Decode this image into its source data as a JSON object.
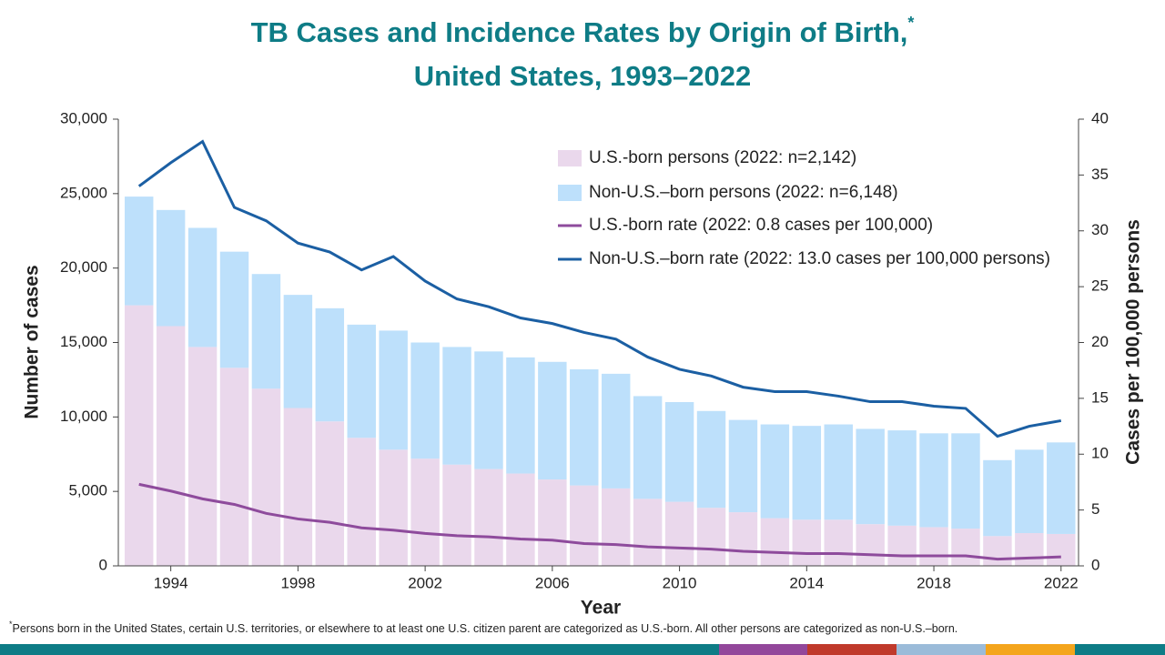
{
  "chart_data": {
    "type": "bar-line",
    "title": [
      "TB Cases and Incidence Rates by Origin of Birth,",
      "United States, 1993–2022"
    ],
    "title_mark": "*",
    "x_label": "Year",
    "y_label": "Number of cases",
    "y2_label": "Cases per 100,000 persons",
    "footnote_mark": "*",
    "footnote": "Persons born in the United States, certain U.S. territories, or elsewhere to at least one U.S. citizen parent are categorized as U.S.-born. All other persons are categorized as non-U.S.–born.",
    "x": [
      1993,
      1994,
      1995,
      1996,
      1997,
      1998,
      1999,
      2000,
      2001,
      2002,
      2003,
      2004,
      2005,
      2006,
      2007,
      2008,
      2009,
      2010,
      2011,
      2012,
      2013,
      2014,
      2015,
      2016,
      2017,
      2018,
      2019,
      2020,
      2021,
      2022
    ],
    "xlim": [
      1992.35,
      2022.55
    ],
    "xticks": [
      1994,
      1998,
      2002,
      2006,
      2010,
      2014,
      2018,
      2022
    ],
    "ylim": [
      0,
      30000
    ],
    "yticks": [
      0,
      {
        "value": 5000,
        "label": "5,000"
      },
      {
        "value": 10000,
        "label": "10,000"
      },
      {
        "value": 15000,
        "label": "15,000"
      },
      {
        "value": 20000,
        "label": "20,000"
      },
      {
        "value": 25000,
        "label": "25,000"
      },
      {
        "value": 30000,
        "label": "30,000"
      }
    ],
    "y2lim": [
      0,
      40
    ],
    "y2ticks": [
      0,
      5,
      10,
      15,
      20,
      25,
      30,
      35,
      40
    ],
    "stacked": true,
    "series": [
      {
        "name": "U.S.-born persons (2022: n=2,142)",
        "type": "bar",
        "color": "#ead8ec",
        "values": [
          17500,
          16100,
          14700,
          13300,
          11900,
          10600,
          9700,
          8600,
          7800,
          7200,
          6800,
          6500,
          6200,
          5800,
          5400,
          5200,
          4500,
          4300,
          3900,
          3600,
          3200,
          3100,
          3100,
          2800,
          2700,
          2600,
          2500,
          2000,
          2200,
          2142
        ]
      },
      {
        "name": "Non-U.S.–born persons (2022: n=6,148)",
        "type": "bar",
        "color": "#bde0fb",
        "values": [
          7300,
          7800,
          8000,
          7800,
          7700,
          7600,
          7600,
          7600,
          8000,
          7800,
          7900,
          7900,
          7800,
          7900,
          7800,
          7700,
          6900,
          6700,
          6500,
          6200,
          6300,
          6300,
          6400,
          6400,
          6400,
          6300,
          6400,
          5100,
          5600,
          6148
        ]
      },
      {
        "name": "U.S.-born rate (2022: 0.8 cases per 100,000)",
        "type": "line",
        "axis": "y2",
        "color": "#8e4b9c",
        "values": [
          7.3,
          6.7,
          6.0,
          5.5,
          4.7,
          4.2,
          3.9,
          3.4,
          3.2,
          2.9,
          2.7,
          2.6,
          2.4,
          2.3,
          2.0,
          1.9,
          1.7,
          1.6,
          1.5,
          1.3,
          1.2,
          1.1,
          1.1,
          1.0,
          0.9,
          0.9,
          0.9,
          0.6,
          0.7,
          0.8
        ]
      },
      {
        "name": "Non-U.S.–born rate (2022: 13.0 cases per 100,000 persons)",
        "type": "line",
        "axis": "y2",
        "color": "#1b5fa3",
        "values": [
          34.0,
          36.1,
          38.0,
          32.1,
          30.9,
          28.9,
          28.1,
          26.5,
          27.7,
          25.5,
          23.9,
          23.2,
          22.2,
          21.7,
          20.9,
          20.3,
          18.7,
          17.6,
          17.0,
          16.0,
          15.6,
          15.6,
          15.2,
          14.7,
          14.7,
          14.3,
          14.1,
          11.6,
          12.5,
          13.0
        ]
      }
    ]
  }
}
